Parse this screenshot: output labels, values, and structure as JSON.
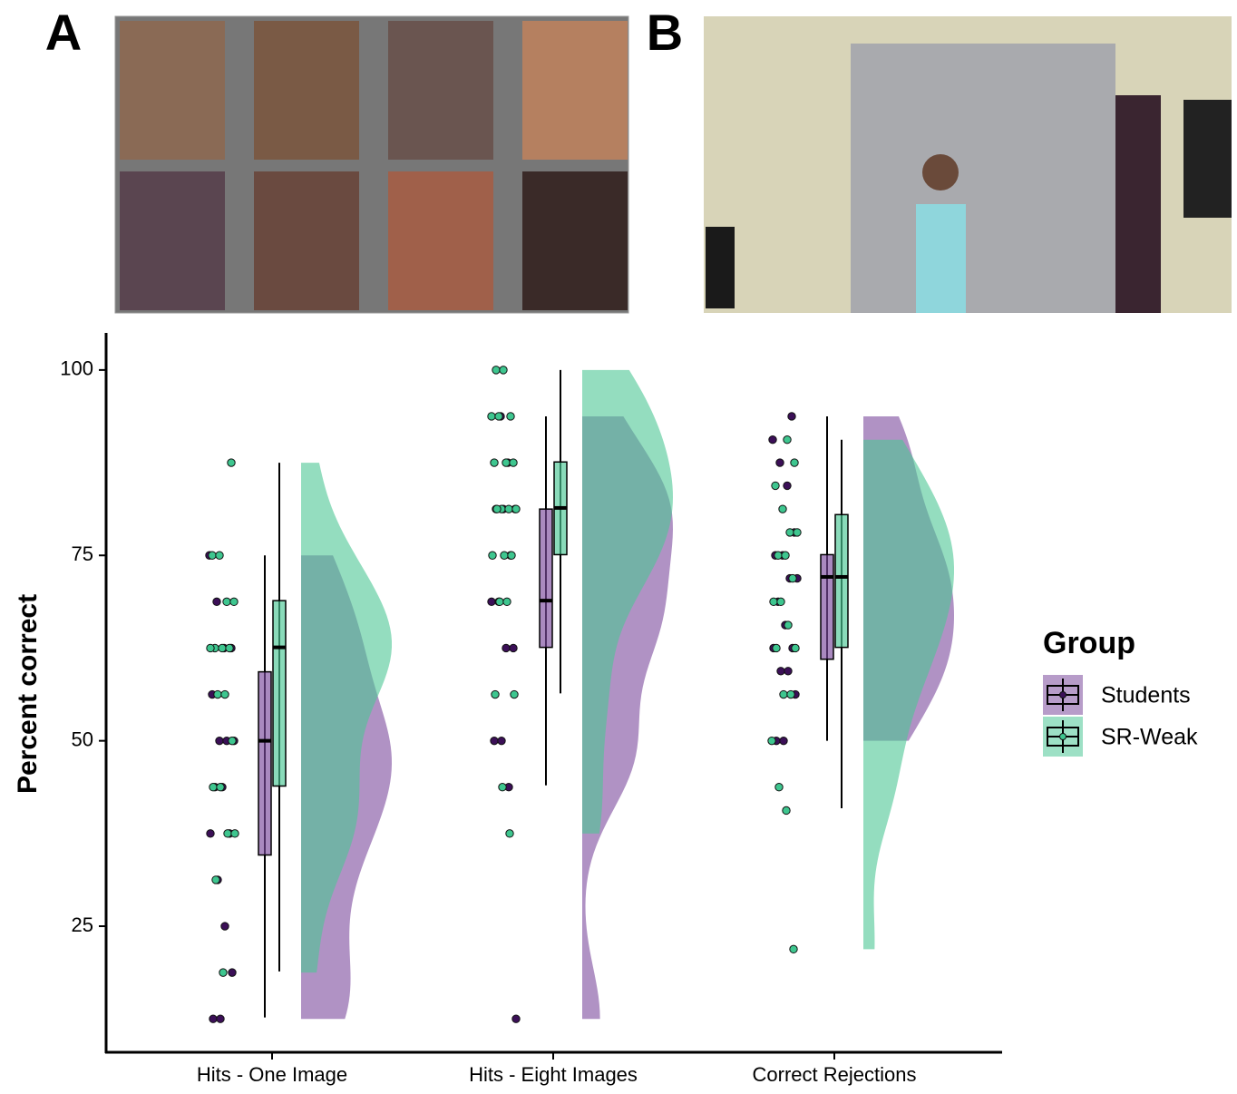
{
  "panels": {
    "a": {
      "label": "A"
    },
    "b": {
      "label": "B"
    }
  },
  "chart_data": {
    "type": "raincloud",
    "y_label": "Percent correct",
    "categories": [
      "Hits - One Image",
      "Hits - Eight Images",
      "Correct Rejections"
    ],
    "ylim": [
      8,
      105
    ],
    "yticks": [
      25,
      50,
      75,
      100
    ],
    "legend_title": "Group",
    "legend_position": "right",
    "series": [
      {
        "name": "Students",
        "color": "#7b4a9c",
        "point_color": "#3b0f57",
        "values": [
          [
            75,
            68.75,
            62.5,
            62.5,
            56.25,
            50,
            50,
            50,
            43.75,
            43.75,
            37.5,
            37.5,
            31.25,
            25,
            18.75,
            12.5,
            12.5
          ],
          [
            93.75,
            87.5,
            81.25,
            81.25,
            81.25,
            75,
            68.75,
            68.75,
            62.5,
            62.5,
            50,
            50,
            43.75,
            12.5
          ],
          [
            93.75,
            90.6,
            87.5,
            84.4,
            78.1,
            75,
            75,
            71.9,
            71.9,
            68.75,
            65.6,
            62.5,
            62.5,
            59.4,
            59.4,
            56.25,
            50,
            50
          ]
        ],
        "boxes": [
          {
            "min": 12.7,
            "q1": 34.6,
            "median": 50,
            "q3": 59.3,
            "max": 75
          },
          {
            "min": 44,
            "q1": 62.6,
            "median": 68.9,
            "q3": 81.25,
            "max": 93.75
          },
          {
            "min": 50,
            "q1": 61,
            "median": 72.1,
            "q3": 75.1,
            "max": 93.75
          }
        ]
      },
      {
        "name": "SR-Weak",
        "color": "#4cc795",
        "point_color": "#3ec68f",
        "values": [
          [
            87.5,
            75,
            75,
            68.75,
            68.75,
            62.5,
            62.5,
            62.5,
            62.5,
            56.25,
            56.25,
            50,
            43.75,
            43.75,
            37.5,
            37.5,
            31.25,
            18.75
          ],
          [
            100,
            100,
            93.75,
            93.75,
            93.75,
            87.5,
            87.5,
            87.5,
            81.25,
            81.25,
            81.25,
            81.25,
            75,
            75,
            75,
            68.75,
            68.75,
            56.25,
            56.25,
            43.75,
            37.5
          ],
          [
            90.6,
            87.5,
            84.4,
            81.25,
            78.1,
            78.1,
            75,
            75,
            71.9,
            68.75,
            68.75,
            65.6,
            62.5,
            62.5,
            56.25,
            56.25,
            50,
            43.75,
            40.6,
            21.9
          ]
        ],
        "boxes": [
          {
            "min": 18.9,
            "q1": 43.9,
            "median": 62.6,
            "q3": 68.9,
            "max": 87.5
          },
          {
            "min": 56.4,
            "q1": 75.1,
            "median": 81.4,
            "q3": 87.6,
            "max": 100
          },
          {
            "min": 40.9,
            "q1": 62.6,
            "median": 72.1,
            "q3": 80.5,
            "max": 90.6
          }
        ]
      }
    ]
  }
}
